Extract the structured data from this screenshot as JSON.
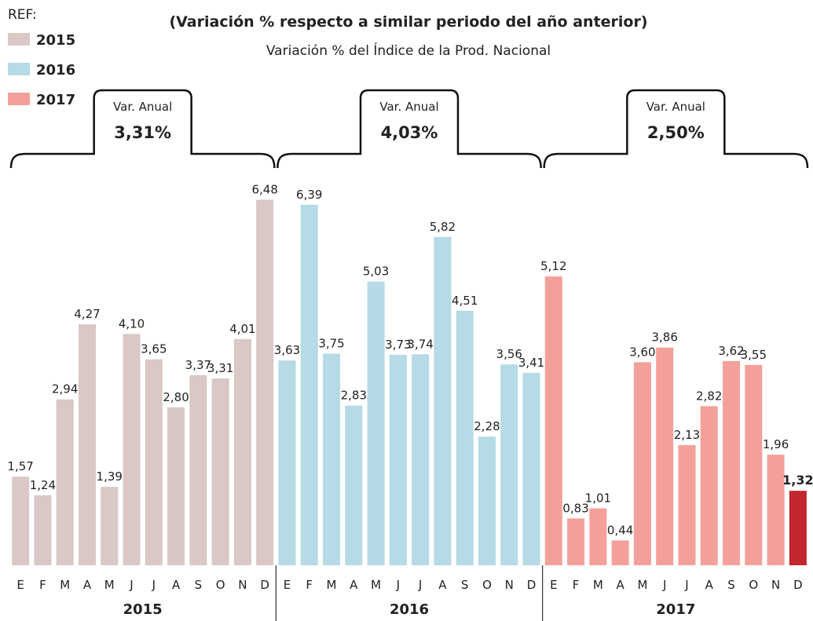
{
  "chart_data": {
    "type": "bar",
    "title": "(Variación % respecto a similar periodo del año anterior)",
    "subtitle": "Variación % del Índice de la Prod. Nacional",
    "legend_title": "REF:",
    "ylim": [
      0,
      7
    ],
    "groups": [
      {
        "name": "2015",
        "color": "#d9c8c5",
        "annual": {
          "title": "Var. Anual",
          "value": 3.31,
          "label": "3,31%"
        },
        "categories": [
          "E",
          "F",
          "M",
          "A",
          "M",
          "J",
          "J",
          "A",
          "S",
          "O",
          "N",
          "D"
        ],
        "values": [
          1.57,
          1.24,
          2.94,
          4.27,
          1.39,
          4.1,
          3.65,
          2.8,
          3.37,
          3.31,
          4.01,
          6.48
        ],
        "value_labels": [
          "1,57",
          "1,24",
          "2,94",
          "4,27",
          "1,39",
          "4,10",
          "3,65",
          "2,80",
          "3,37",
          "3,31",
          "4,01",
          "6,48"
        ]
      },
      {
        "name": "2016",
        "color": "#b6dae6",
        "annual": {
          "title": "Var. Anual",
          "value": 4.03,
          "label": "4,03%"
        },
        "categories": [
          "E",
          "F",
          "M",
          "A",
          "M",
          "J",
          "J",
          "A",
          "S",
          "O",
          "N",
          "D"
        ],
        "values": [
          3.63,
          6.39,
          3.75,
          2.83,
          5.03,
          3.73,
          3.74,
          5.82,
          4.51,
          2.28,
          3.56,
          3.41
        ],
        "value_labels": [
          "3,63",
          "6,39",
          "3,75",
          "2,83",
          "5,03",
          "3,73",
          "3,74",
          "5,82",
          "4,51",
          "2,28",
          "3,56",
          "3,41"
        ]
      },
      {
        "name": "2017",
        "color": "#f4a09a",
        "annual": {
          "title": "Var. Anual",
          "value": 2.5,
          "label": "2,50%"
        },
        "categories": [
          "E",
          "F",
          "M",
          "A",
          "M",
          "J",
          "J",
          "A",
          "S",
          "O",
          "N",
          "D"
        ],
        "values": [
          5.12,
          0.83,
          1.01,
          0.44,
          3.6,
          3.86,
          2.13,
          2.82,
          3.62,
          3.55,
          1.96,
          1.32
        ],
        "value_labels": [
          "5,12",
          "0,83",
          "1,01",
          "0,44",
          "3,60",
          "3,86",
          "2,13",
          "2,82",
          "3,62",
          "3,55",
          "1,96",
          "1,32"
        ],
        "highlight": {
          "index": 11,
          "color": "#c0282d"
        }
      }
    ]
  }
}
